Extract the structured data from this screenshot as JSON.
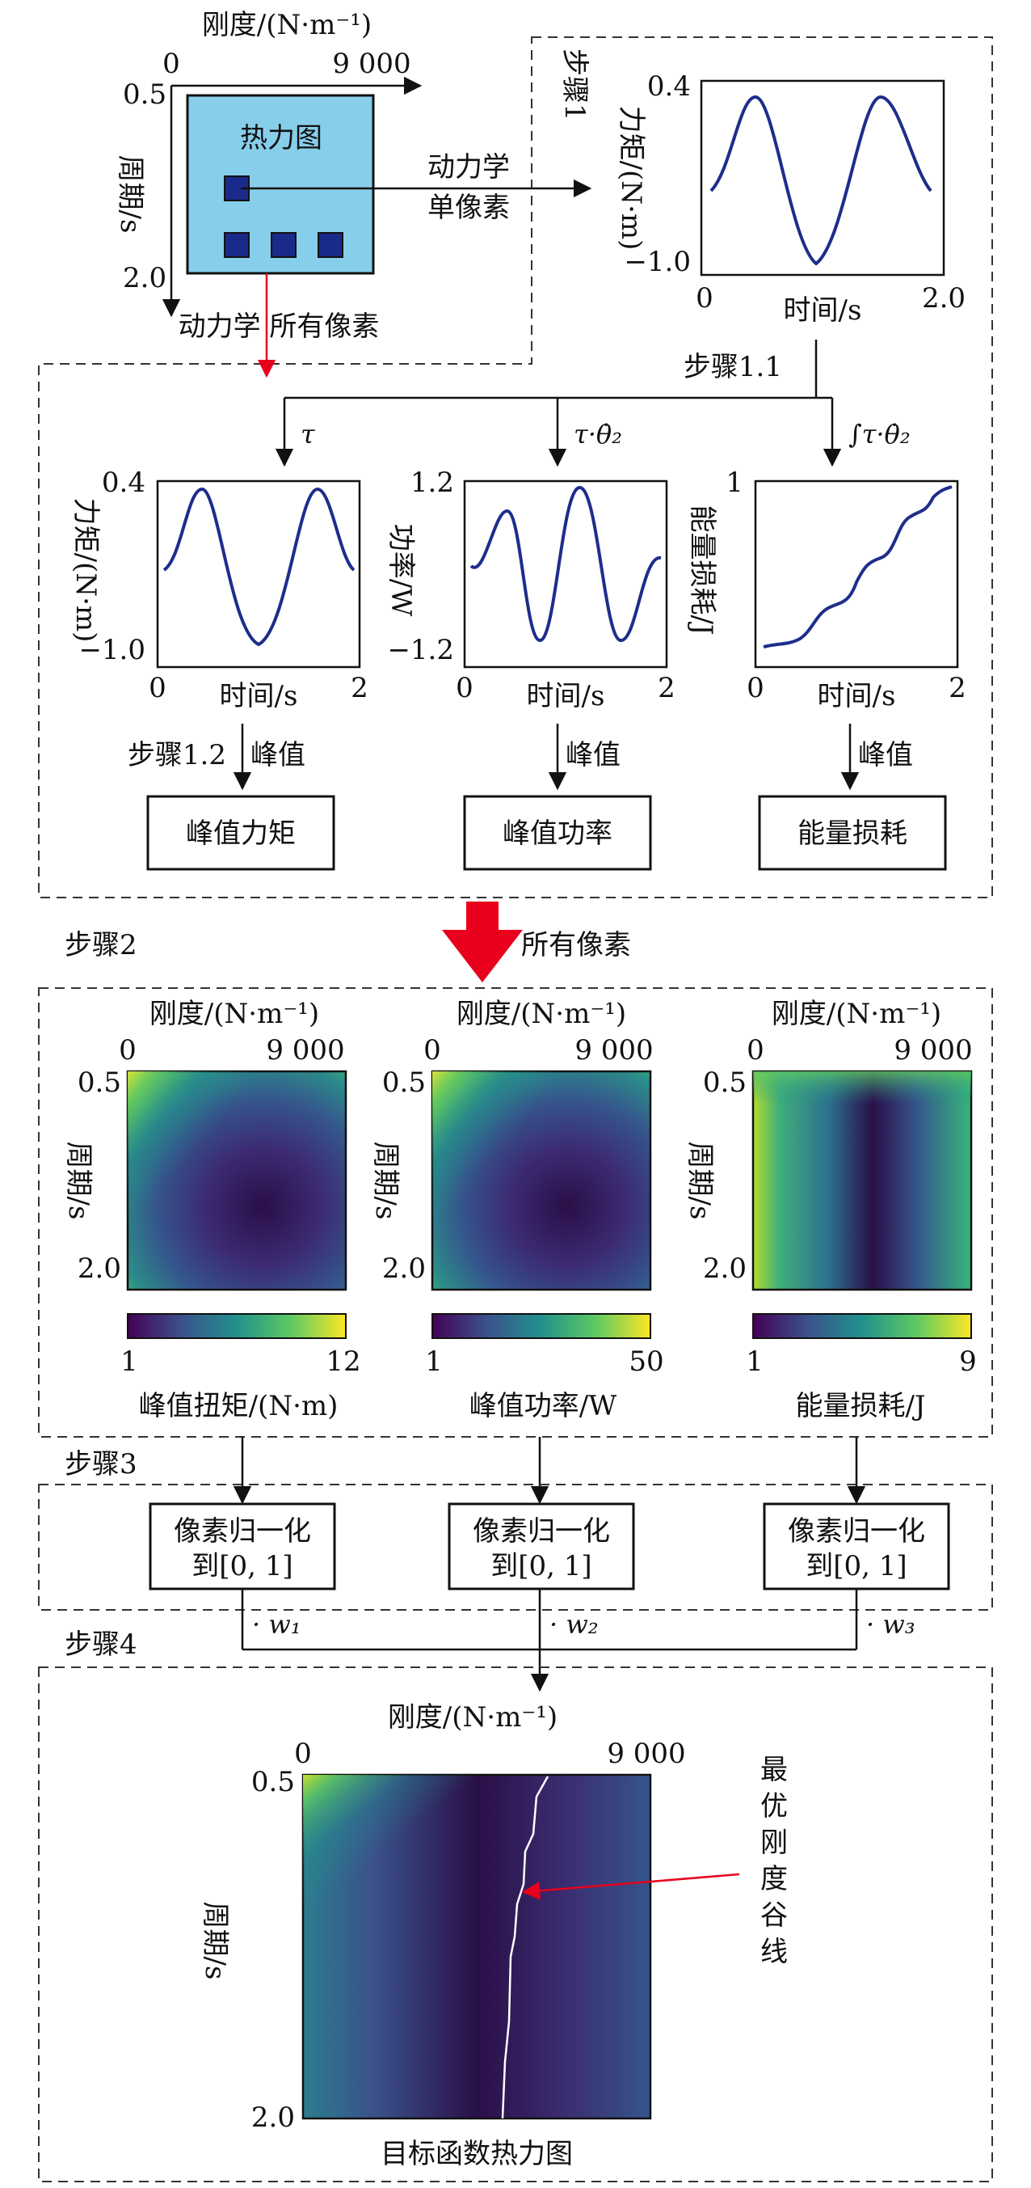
{
  "step_labels": {
    "step1": "步骤1",
    "step1_1": "步骤1.1",
    "step1_2": "步骤1.2",
    "step2": "步骤2",
    "step3": "步骤3",
    "step4": "步骤4"
  },
  "top_heatmap": {
    "title": "热力图",
    "x_label": "刚度/(N·m⁻¹)",
    "x_min": "0",
    "x_max": "9 000",
    "y_label": "周期/s",
    "y_min": "0.5",
    "y_max": "2.0",
    "single_pixel_label_1": "动力学",
    "single_pixel_label_2": "单像素",
    "all_pixels_label": "动力学 所有像素"
  },
  "top_plot": {
    "y_label": "力矩/(N·m)",
    "y_max": "0.4",
    "y_min": "−1.0",
    "x_label": "时间/s",
    "x_min": "0",
    "x_max": "2.0"
  },
  "branch_labels": {
    "tau": "τ",
    "tau_theta": "τ·θ̇₂",
    "integral": "∫τ·θ̇₂"
  },
  "plots": [
    {
      "y_label": "力矩/(N·m)",
      "y_max": "0.4",
      "y_min": "−1.0",
      "x_label": "时间/s",
      "x_min": "0",
      "x_max": "2",
      "peak": "峰值",
      "result": "峰值力矩"
    },
    {
      "y_label": "功率/W",
      "y_max": "1.2",
      "y_min": "−1.2",
      "x_label": "时间/s",
      "x_min": "0",
      "x_max": "2",
      "peak": "峰值",
      "result": "峰值功率"
    },
    {
      "y_label": "能量损耗/J",
      "y_max": "1",
      "y_min": "0",
      "x_label": "时间/s",
      "x_min": "0",
      "x_max": "2",
      "peak": "峰值",
      "result": "能量损耗"
    }
  ],
  "all_pixels": "所有像素",
  "heatmaps": [
    {
      "x_label": "刚度/(N·m⁻¹)",
      "x_min": "0",
      "x_max": "9 000",
      "y_label": "周期/s",
      "y_min": "0.5",
      "y_max": "2.0",
      "cb_min": "1",
      "cb_max": "12",
      "caption": "峰值扭矩/(N·m)"
    },
    {
      "x_label": "刚度/(N·m⁻¹)",
      "x_min": "0",
      "x_max": "9 000",
      "y_label": "周期/s",
      "y_min": "0.5",
      "y_max": "2.0",
      "cb_min": "1",
      "cb_max": "50",
      "caption": "峰值功率/W"
    },
    {
      "x_label": "刚度/(N·m⁻¹)",
      "x_min": "0",
      "x_max": "9 000",
      "y_label": "周期/s",
      "y_min": "0.5",
      "y_max": "2.0",
      "cb_min": "1",
      "cb_max": "9",
      "caption": "能量损耗/J"
    }
  ],
  "normalize": [
    {
      "line1": "像素归一化",
      "line2": "到[0, 1]",
      "weight": "· w₁"
    },
    {
      "line1": "像素归一化",
      "line2": "到[0, 1]",
      "weight": "· w₂"
    },
    {
      "line1": "像素归一化",
      "line2": "到[0, 1]",
      "weight": "· w₃"
    }
  ],
  "final_heatmap": {
    "x_label": "刚度/(N·m⁻¹)",
    "x_min": "0",
    "x_max": "9 000",
    "y_label": "周期/s",
    "y_min": "0.5",
    "y_max": "2.0",
    "caption": "目标函数热力图",
    "annotation": [
      "最",
      "优",
      "刚",
      "度",
      "谷",
      "线"
    ]
  },
  "colors": {
    "viridis_dark": "#440154",
    "viridis_mid": "#21918c",
    "viridis_light": "#fde725",
    "curve": "#1e2d8c",
    "pixel": "#1a2a8a",
    "heatmap_bg": "#87ceeb",
    "arrow_red": "#e8001c"
  }
}
